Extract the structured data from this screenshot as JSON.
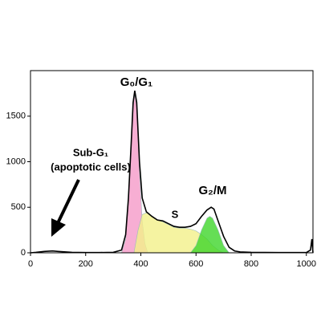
{
  "chart_data": {
    "type": "area",
    "x": [
      0,
      20,
      50,
      80,
      100,
      150,
      200,
      250,
      300,
      330,
      345,
      355,
      365,
      372,
      378,
      385,
      395,
      405,
      420,
      440,
      460,
      480,
      500,
      520,
      540,
      560,
      580,
      600,
      620,
      640,
      655,
      665,
      680,
      700,
      720,
      740,
      760,
      800,
      900,
      1000,
      1015,
      1020,
      1024
    ],
    "values": [
      0,
      5,
      15,
      20,
      15,
      5,
      3,
      3,
      5,
      30,
      200,
      600,
      1200,
      1650,
      1780,
      1650,
      1000,
      600,
      450,
      400,
      360,
      350,
      320,
      290,
      280,
      280,
      290,
      320,
      400,
      470,
      500,
      480,
      350,
      180,
      60,
      20,
      10,
      5,
      3,
      3,
      30,
      150,
      0
    ],
    "color": "#000000",
    "series": [
      {
        "color": "#f59ac8",
        "x": [
          330,
          345,
          355,
          365,
          372,
          378,
          385,
          395,
          405,
          415,
          425
        ],
        "values": [
          0,
          150,
          550,
          1150,
          1600,
          1740,
          1600,
          900,
          350,
          100,
          0
        ]
      },
      {
        "color": "#f2f08a",
        "x": [
          375,
          390,
          405,
          420,
          440,
          460,
          480,
          500,
          520,
          540,
          560,
          580,
          600,
          620,
          640,
          660,
          680,
          700
        ],
        "values": [
          0,
          250,
          420,
          440,
          400,
          360,
          340,
          310,
          280,
          270,
          270,
          260,
          240,
          200,
          150,
          80,
          30,
          0
        ]
      },
      {
        "color": "#3fd62a",
        "x": [
          580,
          600,
          620,
          640,
          650,
          660,
          680,
          700,
          720
        ],
        "values": [
          0,
          80,
          250,
          380,
          400,
          380,
          250,
          80,
          0
        ]
      }
    ],
    "xlim": [
      0,
      1024
    ],
    "xticks": [
      0,
      200,
      400,
      600,
      800,
      1000
    ],
    "ylim": [
      0,
      2000
    ],
    "yticks": [
      0,
      500,
      1000,
      1500
    ],
    "annotations": [
      "G₀/G₁",
      "S",
      "G₂/M",
      "Sub-G₁",
      "(apoptotic cells)"
    ]
  }
}
